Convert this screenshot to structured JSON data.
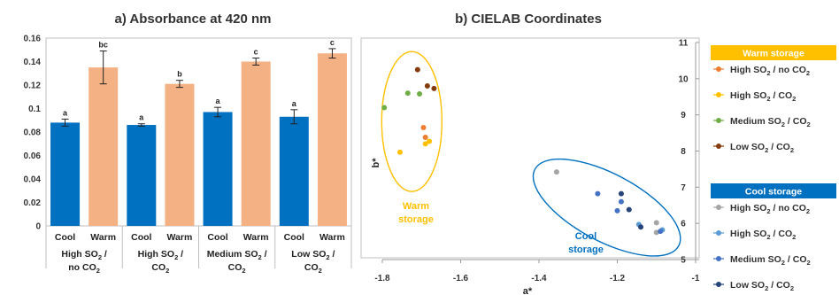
{
  "chart_data": [
    {
      "type": "bar",
      "title": "a) Absorbance at 420 nm",
      "ylim": [
        0,
        0.16
      ],
      "yticks": [
        "0",
        "0.02",
        "0.04",
        "0.06",
        "0.08",
        "0.1",
        "0.12",
        "0.14",
        "0.16"
      ],
      "categories": [
        "Cool",
        "Warm",
        "Cool",
        "Warm",
        "Cool",
        "Warm",
        "Cool",
        "Warm"
      ],
      "groups": [
        "High SO2 / no CO2",
        "High SO2 / CO2",
        "Medium SO2 / CO2",
        "Low SO2 / CO2"
      ],
      "values": [
        0.088,
        0.135,
        0.086,
        0.121,
        0.097,
        0.14,
        0.093,
        0.147
      ],
      "errors": [
        0.003,
        0.014,
        0.001,
        0.003,
        0.004,
        0.003,
        0.006,
        0.004
      ],
      "significance": [
        "a",
        "bc",
        "a",
        "b",
        "a",
        "c",
        "a",
        "c"
      ],
      "colors": {
        "cool": "#0070C0",
        "warm": "#F4B183"
      }
    },
    {
      "type": "scatter",
      "title": "b) CIELAB Coordinates",
      "xlabel": "a*",
      "ylabel": "b*",
      "xlim": [
        -1.8,
        -1.0
      ],
      "ylim": [
        5,
        11
      ],
      "xticks": [
        "-1.8",
        "-1.6",
        "-1.4",
        "-1.2",
        "-1"
      ],
      "yticks": [
        "5",
        "6",
        "7",
        "8",
        "9",
        "10",
        "11"
      ],
      "series": [
        {
          "name": "High SO2 / no CO2",
          "group": "warm",
          "color": "#ED7D31",
          "points": [
            [
              -1.695,
              8.65
            ],
            [
              -1.69,
              8.38
            ]
          ]
        },
        {
          "name": "High SO2 / CO2",
          "group": "warm",
          "color": "#FFC000",
          "points": [
            [
              -1.755,
              7.97
            ],
            [
              -1.69,
              8.2
            ],
            [
              -1.68,
              8.27
            ]
          ]
        },
        {
          "name": "Medium SO2 / CO2",
          "group": "warm",
          "color": "#70AD47",
          "points": [
            [
              -1.795,
              9.2
            ],
            [
              -1.735,
              9.6
            ],
            [
              -1.705,
              9.58
            ]
          ]
        },
        {
          "name": "Low SO2 / CO2",
          "group": "warm",
          "color": "#843C0C",
          "points": [
            [
              -1.71,
              10.25
            ],
            [
              -1.685,
              9.8
            ],
            [
              -1.668,
              9.73
            ]
          ]
        },
        {
          "name": "High SO2 / no CO2",
          "group": "cool",
          "color": "#A5A5A5",
          "points": [
            [
              -1.355,
              7.42
            ],
            [
              -1.1,
              6.02
            ],
            [
              -1.1,
              5.75
            ]
          ]
        },
        {
          "name": "High SO2 / CO2",
          "group": "cool",
          "color": "#5B9BD5",
          "points": [
            [
              -1.145,
              5.97
            ],
            [
              -1.085,
              5.82
            ]
          ]
        },
        {
          "name": "Medium SO2 / CO2",
          "group": "cool",
          "color": "#4472C4",
          "points": [
            [
              -1.25,
              6.82
            ],
            [
              -1.2,
              6.35
            ],
            [
              -1.19,
              6.6
            ],
            [
              -1.09,
              5.78
            ]
          ]
        },
        {
          "name": "Low SO2 / CO2",
          "group": "cool",
          "color": "#264478",
          "points": [
            [
              -1.19,
              6.82
            ],
            [
              -1.17,
              6.38
            ],
            [
              -1.14,
              5.9
            ]
          ]
        }
      ],
      "annotations": {
        "warm": [
          "Warm",
          "storage"
        ],
        "cool": [
          "Cool",
          "storage"
        ]
      },
      "annotation_colors": {
        "warm": "#FFC000",
        "cool": "#0070C0"
      }
    }
  ],
  "legend": {
    "warm_title": "Warm storage",
    "cool_title": "Cool storage",
    "warm_bg": "#FFC000",
    "cool_bg": "#0070C0",
    "warm_items": [
      {
        "name": "High SO2 / no CO2",
        "color": "#ED7D31"
      },
      {
        "name": "High SO2 / CO2",
        "color": "#FFC000"
      },
      {
        "name": "Medium SO2 / CO2",
        "color": "#70AD47"
      },
      {
        "name": "Low SO2 / CO2",
        "color": "#843C0C"
      }
    ],
    "cool_items": [
      {
        "name": "High SO2 / no CO2",
        "color": "#A5A5A5"
      },
      {
        "name": "High SO2 / CO2",
        "color": "#5B9BD5"
      },
      {
        "name": "Medium SO2 / CO2",
        "color": "#4472C4"
      },
      {
        "name": "Low SO2 / CO2",
        "color": "#264478"
      }
    ]
  }
}
